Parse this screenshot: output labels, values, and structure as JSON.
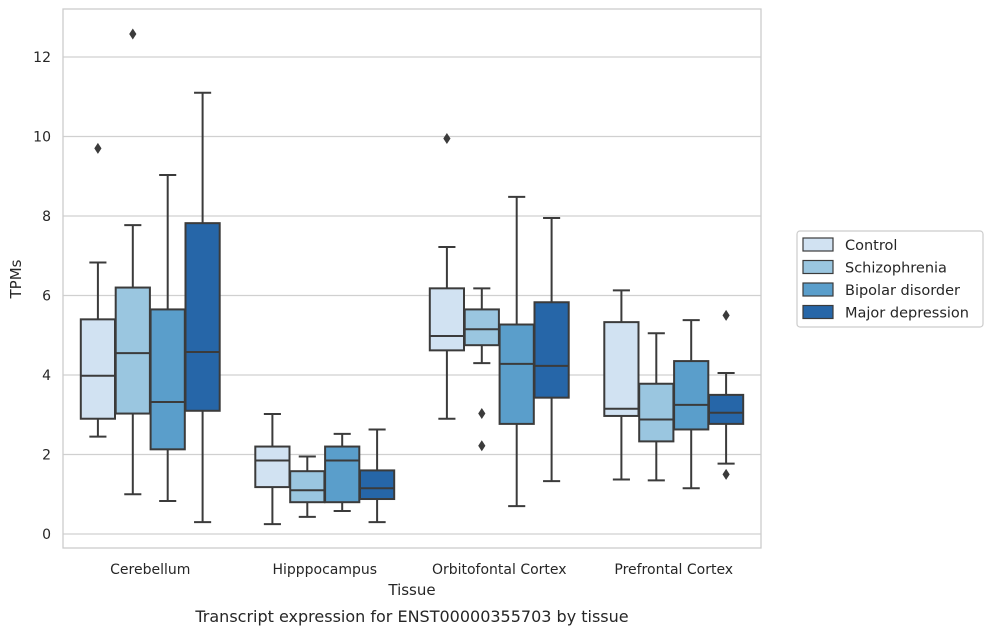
{
  "chart_data": {
    "type": "boxplot",
    "caption": "Transcript expression for ENST00000355703 by tissue",
    "xlabel": "Tissue",
    "ylabel": "TPMs",
    "ylim": [
      -0.3,
      13.2
    ],
    "yticks": [
      0,
      2,
      4,
      6,
      8,
      10,
      12
    ],
    "grid": true,
    "legend_position": "right",
    "categories": [
      "Cerebellum",
      "Hipppocampus",
      "Orbitofontal Cortex",
      "Prefrontal Cortex"
    ],
    "series": [
      {
        "name": "Control",
        "color": "#d1e2f2",
        "boxes": [
          {
            "min": 2.45,
            "q1": 2.9,
            "median": 3.98,
            "q3": 5.4,
            "max": 6.83,
            "outliers": [
              9.7
            ]
          },
          {
            "min": 0.25,
            "q1": 1.18,
            "median": 1.85,
            "q3": 2.2,
            "max": 3.02,
            "outliers": []
          },
          {
            "min": 2.9,
            "q1": 4.62,
            "median": 4.98,
            "q3": 6.18,
            "max": 7.22,
            "outliers": [
              9.95
            ]
          },
          {
            "min": 1.37,
            "q1": 2.97,
            "median": 3.15,
            "q3": 5.33,
            "max": 6.13,
            "outliers": []
          }
        ]
      },
      {
        "name": "Schizophrenia",
        "color": "#9ac6e0",
        "boxes": [
          {
            "min": 1.0,
            "q1": 3.03,
            "median": 4.55,
            "q3": 6.2,
            "max": 7.77,
            "outliers": [
              12.58
            ]
          },
          {
            "min": 0.43,
            "q1": 0.8,
            "median": 1.1,
            "q3": 1.58,
            "max": 1.95,
            "outliers": []
          },
          {
            "min": 4.3,
            "q1": 4.75,
            "median": 5.15,
            "q3": 5.65,
            "max": 6.18,
            "outliers": [
              3.03,
              2.22
            ]
          },
          {
            "min": 1.35,
            "q1": 2.33,
            "median": 2.88,
            "q3": 3.78,
            "max": 5.05,
            "outliers": []
          }
        ]
      },
      {
        "name": "Bipolar disorder",
        "color": "#5a9ecb",
        "boxes": [
          {
            "min": 0.83,
            "q1": 2.13,
            "median": 3.32,
            "q3": 5.65,
            "max": 9.03,
            "outliers": []
          },
          {
            "min": 0.58,
            "q1": 0.8,
            "median": 1.85,
            "q3": 2.2,
            "max": 2.52,
            "outliers": []
          },
          {
            "min": 0.7,
            "q1": 2.77,
            "median": 4.28,
            "q3": 5.27,
            "max": 8.48,
            "outliers": []
          },
          {
            "min": 1.15,
            "q1": 2.63,
            "median": 3.25,
            "q3": 4.35,
            "max": 5.38,
            "outliers": []
          }
        ]
      },
      {
        "name": "Major depression",
        "color": "#2666a8",
        "boxes": [
          {
            "min": 0.3,
            "q1": 3.1,
            "median": 4.58,
            "q3": 7.82,
            "max": 11.1,
            "outliers": []
          },
          {
            "min": 0.3,
            "q1": 0.88,
            "median": 1.15,
            "q3": 1.6,
            "max": 2.63,
            "outliers": []
          },
          {
            "min": 1.33,
            "q1": 3.43,
            "median": 4.23,
            "q3": 5.83,
            "max": 7.95,
            "outliers": []
          },
          {
            "min": 1.77,
            "q1": 2.77,
            "median": 3.05,
            "q3": 3.5,
            "max": 4.05,
            "outliers": [
              5.5,
              1.5
            ]
          }
        ]
      }
    ]
  }
}
